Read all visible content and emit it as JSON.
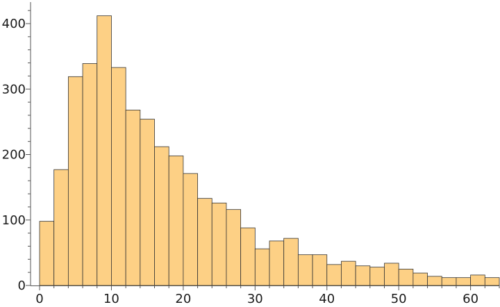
{
  "chart_data": {
    "type": "bar",
    "subtype": "histogram",
    "title": "",
    "xlabel": "",
    "ylabel": "",
    "bin_width": 2,
    "x_start": 0,
    "bins": [
      {
        "x0": 0,
        "x1": 2,
        "count": 98
      },
      {
        "x0": 2,
        "x1": 4,
        "count": 177
      },
      {
        "x0": 4,
        "x1": 6,
        "count": 319
      },
      {
        "x0": 6,
        "x1": 8,
        "count": 339
      },
      {
        "x0": 8,
        "x1": 10,
        "count": 412
      },
      {
        "x0": 10,
        "x1": 12,
        "count": 333
      },
      {
        "x0": 12,
        "x1": 14,
        "count": 268
      },
      {
        "x0": 14,
        "x1": 16,
        "count": 254
      },
      {
        "x0": 16,
        "x1": 18,
        "count": 212
      },
      {
        "x0": 18,
        "x1": 20,
        "count": 198
      },
      {
        "x0": 20,
        "x1": 22,
        "count": 171
      },
      {
        "x0": 22,
        "x1": 24,
        "count": 133
      },
      {
        "x0": 24,
        "x1": 26,
        "count": 126
      },
      {
        "x0": 26,
        "x1": 28,
        "count": 116
      },
      {
        "x0": 28,
        "x1": 30,
        "count": 88
      },
      {
        "x0": 30,
        "x1": 32,
        "count": 56
      },
      {
        "x0": 32,
        "x1": 34,
        "count": 68
      },
      {
        "x0": 34,
        "x1": 36,
        "count": 72
      },
      {
        "x0": 36,
        "x1": 38,
        "count": 47
      },
      {
        "x0": 38,
        "x1": 40,
        "count": 47
      },
      {
        "x0": 40,
        "x1": 42,
        "count": 32
      },
      {
        "x0": 42,
        "x1": 44,
        "count": 37
      },
      {
        "x0": 44,
        "x1": 46,
        "count": 30
      },
      {
        "x0": 46,
        "x1": 48,
        "count": 28
      },
      {
        "x0": 48,
        "x1": 50,
        "count": 34
      },
      {
        "x0": 50,
        "x1": 52,
        "count": 25
      },
      {
        "x0": 52,
        "x1": 54,
        "count": 19
      },
      {
        "x0": 54,
        "x1": 56,
        "count": 14
      },
      {
        "x0": 56,
        "x1": 58,
        "count": 12
      },
      {
        "x0": 58,
        "x1": 60,
        "count": 12
      },
      {
        "x0": 60,
        "x1": 62,
        "count": 16
      },
      {
        "x0": 62,
        "x1": 64,
        "count": 12
      }
    ],
    "xlim": [
      0,
      64
    ],
    "ylim": [
      0,
      412
    ],
    "x_ticks": [
      "0",
      "10",
      "20",
      "30",
      "40",
      "50",
      "60"
    ],
    "y_ticks": [
      "0",
      "100",
      "200",
      "300",
      "400"
    ],
    "grid": false,
    "legend": false,
    "colors": {
      "bar_fill": "#FDD085",
      "bar_stroke": "#333333",
      "axis": "#555555",
      "text": "#1a1a1a"
    }
  }
}
